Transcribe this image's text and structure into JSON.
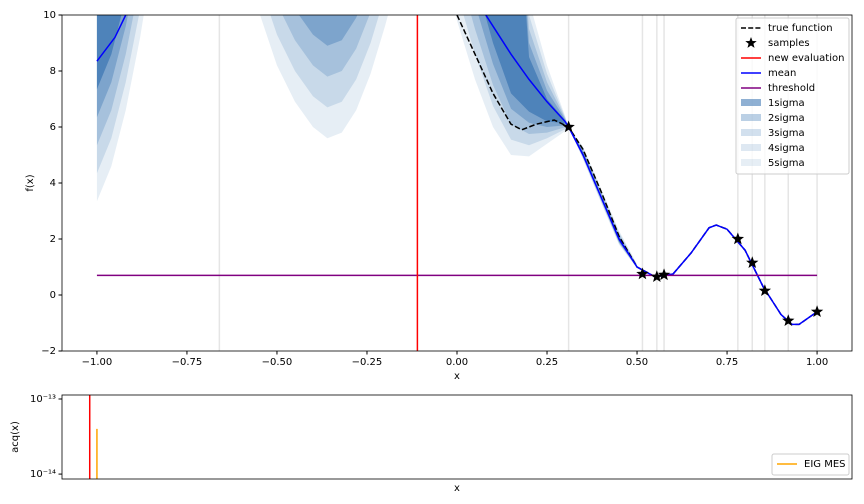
{
  "chart_data": [
    {
      "type": "line",
      "x_label": "x",
      "y_label": "f(x)",
      "xlim": [
        -1.097,
        1.097
      ],
      "ylim": [
        -2,
        10
      ],
      "xticks": [
        {
          "value": -1,
          "label": "−1.00"
        },
        {
          "value": -0.75,
          "label": "−0.75"
        },
        {
          "value": -0.5,
          "label": "−0.50"
        },
        {
          "value": -0.25,
          "label": "−0.25"
        },
        {
          "value": 0,
          "label": "0.00"
        },
        {
          "value": 0.25,
          "label": "0.25"
        },
        {
          "value": 0.5,
          "label": "0.50"
        },
        {
          "value": 0.75,
          "label": "0.75"
        },
        {
          "value": 1,
          "label": "1.00"
        }
      ],
      "yticks": [
        {
          "value": -2,
          "label": "−2"
        },
        0,
        2,
        4,
        6,
        8,
        10
      ],
      "legend": "upper right",
      "sample_lines_x": [
        -0.66,
        0.31,
        0.515,
        0.555,
        0.575,
        0.78,
        0.82,
        0.855,
        0.92,
        1.0
      ],
      "series": [
        {
          "name": "true function",
          "type": "line",
          "dash": true,
          "color": "#000000",
          "x": [
            0,
            0.05,
            0.1,
            0.15,
            0.18,
            0.22,
            0.27,
            0.31,
            0.35,
            0.4,
            0.45,
            0.5,
            0.55,
            0.6,
            0.65,
            0.7,
            0.72,
            0.75,
            0.8,
            0.85,
            0.9,
            0.93,
            0.95,
            1.0
          ],
          "values": [
            10,
            8.6,
            7.2,
            6.1,
            5.9,
            6.1,
            6.25,
            6.0,
            5.2,
            3.7,
            2.1,
            1.0,
            0.65,
            0.75,
            1.5,
            2.4,
            2.5,
            2.35,
            1.6,
            0.3,
            -0.7,
            -1.05,
            -1.05,
            -0.6
          ]
        },
        {
          "name": "samples",
          "type": "scatter",
          "marker": "star",
          "color": "#000000",
          "x": [
            0.31,
            0.515,
            0.555,
            0.575,
            0.78,
            0.82,
            0.855,
            0.92,
            1.0
          ],
          "values": [
            6.0,
            0.75,
            0.65,
            0.72,
            2.0,
            1.15,
            0.15,
            -0.92,
            -0.6
          ]
        },
        {
          "name": "new evaluation",
          "type": "vline",
          "color": "#ff0000",
          "x": -0.11
        },
        {
          "name": "mean",
          "type": "line",
          "color": "#0000ff",
          "x": [
            -1,
            -0.95,
            -0.92,
            -0.5,
            0.08,
            0.1,
            0.15,
            0.2,
            0.25,
            0.3,
            0.31,
            0.35,
            0.4,
            0.45,
            0.5,
            0.55,
            0.6,
            0.65,
            0.7,
            0.72,
            0.75,
            0.8,
            0.85,
            0.9,
            0.93,
            0.95,
            1.0
          ],
          "values": [
            8.35,
            9.2,
            10,
            null,
            10,
            9.6,
            8.6,
            7.7,
            6.9,
            6.2,
            6.0,
            5.0,
            3.5,
            2.0,
            1.0,
            0.65,
            0.75,
            1.5,
            2.4,
            2.5,
            2.35,
            1.6,
            0.3,
            -0.7,
            -1.05,
            -1.05,
            -0.6
          ]
        },
        {
          "name": "threshold",
          "type": "line",
          "color": "#800080",
          "x": [
            -1,
            1
          ],
          "values": [
            0.7,
            0.7
          ]
        },
        {
          "name": "1sigma",
          "type": "band",
          "color": "#1f62a8",
          "alpha": 0.5,
          "x": [
            -1,
            -0.96,
            -0.92,
            -0.88,
            -0.86,
            -0.7,
            -0.56,
            -0.5,
            -0.45,
            -0.4,
            -0.36,
            -0.32,
            -0.28,
            -0.24,
            -0.2,
            -0.16,
            -0.08,
            -0.02,
            0,
            0.05,
            0.1,
            0.15,
            0.2,
            0.25,
            0.3,
            0.31,
            0.35,
            0.4,
            0.45,
            0.5
          ],
          "lower": [
            7.35,
            8.6,
            10.6,
            13.2,
            14.8,
            null,
            14.9,
            12.6,
            11.3,
            10.4,
            10.0,
            10.2,
            11.0,
            12.3,
            14.0,
            15.9,
            null,
            15,
            13.8,
            11.3,
            9.0,
            7.2,
            6.55,
            6.2,
            6.13,
            6.0,
            4.97,
            3.46,
            1.92,
            0.99
          ],
          "upper": [
            18,
            18,
            18,
            18,
            18,
            null,
            18,
            18,
            18,
            18,
            18,
            18,
            18,
            18,
            18,
            18,
            null,
            18,
            18,
            18,
            18,
            18,
            8.5,
            7.0,
            6.24,
            6.0,
            5.1,
            3.56,
            2.06,
            1.02
          ]
        },
        {
          "name": "2sigma",
          "type": "band",
          "color": "#1f62a8",
          "alpha": 0.3,
          "x": [
            -1,
            -0.96,
            -0.92,
            -0.88,
            -0.86,
            -0.7,
            -0.56,
            -0.5,
            -0.45,
            -0.4,
            -0.36,
            -0.32,
            -0.28,
            -0.24,
            -0.2,
            -0.16,
            -0.08,
            -0.02,
            0,
            0.05,
            0.1,
            0.15,
            0.2,
            0.25,
            0.3,
            0.31,
            0.35,
            0.4,
            0.45,
            0.5
          ],
          "lower": [
            6.35,
            7.6,
            9.6,
            12.2,
            13.8,
            null,
            13.8,
            11.5,
            10.2,
            9.3,
            8.9,
            9.1,
            9.9,
            11.2,
            12.9,
            14.8,
            null,
            14,
            12.8,
            10.4,
            8.25,
            6.65,
            6.15,
            6.0,
            6.06,
            6.0,
            4.94,
            3.42,
            1.89,
            0.98
          ],
          "upper": [
            18,
            18,
            18,
            18,
            18,
            null,
            18,
            18,
            18,
            18,
            18,
            18,
            18,
            18,
            18,
            18,
            null,
            18,
            18,
            18,
            18,
            18,
            9.0,
            7.3,
            6.28,
            6.0,
            5.15,
            3.62,
            2.12,
            1.04
          ]
        },
        {
          "name": "3sigma",
          "type": "band",
          "color": "#1f62a8",
          "alpha": 0.2,
          "x": [
            -1,
            -0.96,
            -0.92,
            -0.88,
            -0.86,
            -0.7,
            -0.56,
            -0.5,
            -0.45,
            -0.4,
            -0.36,
            -0.32,
            -0.28,
            -0.24,
            -0.2,
            -0.16,
            -0.08,
            -0.02,
            0,
            0.05,
            0.1,
            0.15,
            0.2,
            0.25,
            0.3,
            0.31,
            0.35,
            0.4,
            0.45,
            0.5
          ],
          "lower": [
            5.35,
            6.6,
            8.6,
            11.2,
            12.8,
            null,
            12.7,
            10.4,
            9.1,
            8.2,
            7.8,
            8.0,
            8.8,
            10.1,
            11.8,
            13.7,
            null,
            13,
            11.8,
            9.5,
            7.5,
            6.1,
            5.75,
            5.8,
            5.99,
            6.0,
            4.91,
            3.38,
            1.86,
            0.97
          ],
          "upper": [
            18,
            18,
            18,
            18,
            18,
            null,
            18,
            18,
            18,
            18,
            18,
            18,
            18,
            18,
            18,
            18,
            null,
            18,
            18,
            18,
            18,
            18,
            9.5,
            7.6,
            6.32,
            6.0,
            5.2,
            3.68,
            2.18,
            1.06
          ]
        },
        {
          "name": "4sigma",
          "type": "band",
          "color": "#1f62a8",
          "alpha": 0.15,
          "x": [
            -1,
            -0.96,
            -0.92,
            -0.88,
            -0.86,
            -0.7,
            -0.56,
            -0.5,
            -0.45,
            -0.4,
            -0.36,
            -0.32,
            -0.28,
            -0.24,
            -0.2,
            -0.16,
            -0.08,
            -0.02,
            0,
            0.05,
            0.1,
            0.15,
            0.2,
            0.25,
            0.3,
            0.31,
            0.35,
            0.4,
            0.45,
            0.5
          ],
          "lower": [
            4.35,
            5.6,
            7.6,
            10.2,
            11.8,
            null,
            11.6,
            9.3,
            8.0,
            7.1,
            6.7,
            6.9,
            7.7,
            9.0,
            10.7,
            12.6,
            null,
            12,
            10.8,
            8.6,
            6.75,
            5.55,
            5.35,
            5.6,
            5.92,
            6.0,
            4.88,
            3.34,
            1.83,
            0.96
          ],
          "upper": [
            18,
            18,
            18,
            18,
            18,
            null,
            18,
            18,
            18,
            18,
            18,
            18,
            18,
            18,
            18,
            18,
            null,
            18,
            18,
            18,
            18,
            18,
            10.0,
            7.9,
            6.36,
            6.0,
            5.25,
            3.74,
            2.24,
            1.08
          ]
        },
        {
          "name": "5sigma",
          "type": "band",
          "color": "#1f62a8",
          "alpha": 0.11,
          "x": [
            -1,
            -0.96,
            -0.92,
            -0.88,
            -0.86,
            -0.7,
            -0.56,
            -0.5,
            -0.45,
            -0.4,
            -0.36,
            -0.32,
            -0.28,
            -0.24,
            -0.2,
            -0.16,
            -0.08,
            -0.02,
            0,
            0.05,
            0.1,
            0.15,
            0.2,
            0.25,
            0.3,
            0.31,
            0.35,
            0.4,
            0.45,
            0.5
          ],
          "lower": [
            3.35,
            4.6,
            6.6,
            9.2,
            10.8,
            null,
            10.5,
            8.2,
            6.9,
            6.0,
            5.6,
            5.8,
            6.6,
            7.9,
            9.6,
            11.5,
            null,
            11,
            9.8,
            7.7,
            6.0,
            5.0,
            4.95,
            5.4,
            5.85,
            6.0,
            4.85,
            3.3,
            1.8,
            0.95
          ],
          "upper": [
            18,
            18,
            18,
            18,
            18,
            null,
            18,
            18,
            18,
            18,
            18,
            18,
            18,
            18,
            18,
            18,
            null,
            18,
            18,
            18,
            18,
            18,
            10.5,
            8.2,
            6.4,
            6.0,
            5.3,
            3.8,
            2.3,
            1.1
          ]
        }
      ]
    },
    {
      "type": "line",
      "x_label": "x",
      "y_label": "acq(x)",
      "log_y": true,
      "xlim": [
        -1.097,
        1.097
      ],
      "ylim": [
        8.6e-15,
        1.13e-13
      ],
      "yticks": [
        {
          "value": 1e-14,
          "label": "10⁻¹⁴"
        },
        {
          "value": 1e-13,
          "label": "10⁻¹³"
        }
      ],
      "legend": "lower right",
      "series": [
        {
          "name": "EIG MES",
          "type": "stem",
          "color": "#ffa500",
          "x": [
            -1.0
          ],
          "values": [
            4e-14
          ]
        },
        {
          "type": "vline",
          "color": "#ff0000",
          "x": -1.02
        }
      ]
    }
  ]
}
